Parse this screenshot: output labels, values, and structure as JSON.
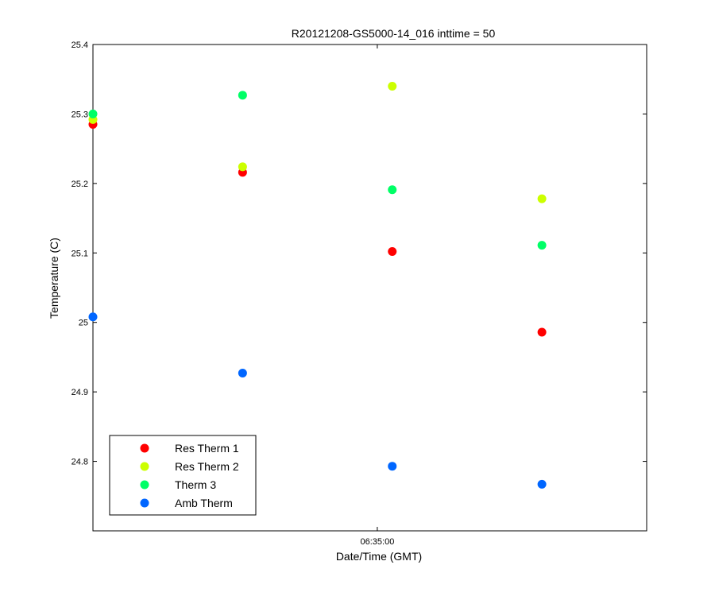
{
  "chart_data": {
    "type": "scatter",
    "title": "R20121208-GS5000-14_016 inttime = 50",
    "xlabel": "Date/Time (GMT)",
    "ylabel": "Temperature (C)",
    "x_tick_labels": [
      "06:35:00"
    ],
    "x_tick_index": 1.9,
    "x_points": [
      0,
      1,
      2,
      3
    ],
    "xlim": [
      0,
      3.7
    ],
    "ylim": [
      24.7,
      25.4
    ],
    "y_ticks": [
      24.8,
      24.9,
      25,
      25.1,
      25.2,
      25.3,
      25.4
    ],
    "y_tick_labels": [
      "24.8",
      "24.9",
      "25",
      "25.1",
      "25.2",
      "25.3",
      "25.4"
    ],
    "grid": false,
    "legend_position": "bottom-left",
    "series": [
      {
        "name": "Res Therm 1",
        "color": "#ff0000",
        "values": [
          25.285,
          25.216,
          25.102,
          24.986
        ]
      },
      {
        "name": "Res Therm 2",
        "color": "#ccff00",
        "values": [
          25.292,
          25.224,
          25.34,
          25.178
        ]
      },
      {
        "name": "Therm 3",
        "color": "#00ff66",
        "values": [
          25.3,
          25.327,
          25.191,
          25.111
        ]
      },
      {
        "name": "Amb Therm",
        "color": "#0066ff",
        "values": [
          25.008,
          24.927,
          24.793,
          24.767
        ]
      }
    ]
  }
}
